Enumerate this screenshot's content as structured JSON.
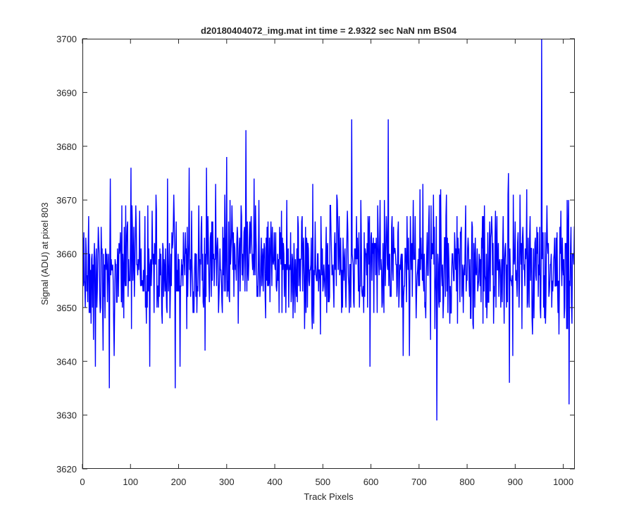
{
  "chart_data": {
    "type": "line",
    "title": "d20180404072_img.mat int time = 2.9322 sec  NaN nm BS04",
    "xlabel": "Track Pixels",
    "ylabel": "Signal (ADU) at pixel 803",
    "xlim": [
      0,
      1024
    ],
    "ylim": [
      3620,
      3700
    ],
    "xticks": [
      0,
      100,
      200,
      300,
      400,
      500,
      600,
      700,
      800,
      900,
      1000
    ],
    "yticks": [
      3620,
      3630,
      3640,
      3650,
      3660,
      3670,
      3680,
      3690,
      3700
    ],
    "grid": false,
    "series": [
      {
        "color": "#0000ff",
        "x_start": 1,
        "x_step": 1,
        "count": 1024,
        "baseline": 3658,
        "noise_std": 6,
        "notable_points": [
          {
            "x": 955,
            "y": 3700
          },
          {
            "x": 737,
            "y": 3629
          },
          {
            "x": 1012,
            "y": 3632
          },
          {
            "x": 56,
            "y": 3635
          },
          {
            "x": 193,
            "y": 3635
          },
          {
            "x": 560,
            "y": 3685
          },
          {
            "x": 636,
            "y": 3685
          },
          {
            "x": 340,
            "y": 3683
          },
          {
            "x": 27,
            "y": 3639
          },
          {
            "x": 140,
            "y": 3639
          },
          {
            "x": 203,
            "y": 3639
          },
          {
            "x": 598,
            "y": 3639
          },
          {
            "x": 888,
            "y": 3636
          },
          {
            "x": 101,
            "y": 3676
          },
          {
            "x": 222,
            "y": 3676
          },
          {
            "x": 258,
            "y": 3676
          },
          {
            "x": 300,
            "y": 3678
          }
        ]
      }
    ]
  }
}
